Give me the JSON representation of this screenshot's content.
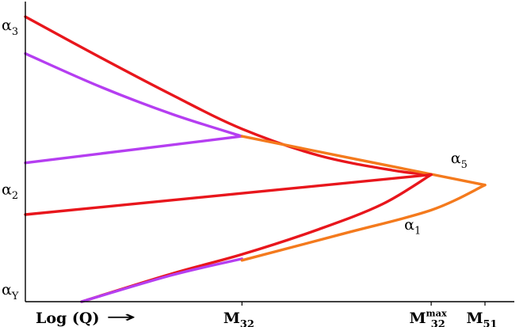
{
  "chart_data": {
    "type": "line",
    "title": "",
    "xlabel": "Log (Q)",
    "x_arrow": "→",
    "xlim": [
      0,
      10
    ],
    "ylim": [
      0,
      10
    ],
    "x_ticks": [
      {
        "key": "m32",
        "main": "M",
        "sub": "32",
        "sup": "",
        "x": 4.43
      },
      {
        "key": "m32max",
        "main": "M",
        "sub": "32",
        "sup": "max",
        "x": 8.3
      },
      {
        "key": "m51",
        "main": "M",
        "sub": "51",
        "sup": "",
        "x": 9.4
      }
    ],
    "y_labels": [
      {
        "key": "a3",
        "main": "α",
        "sub": "3",
        "y": 9.35
      },
      {
        "key": "a2",
        "main": "α",
        "sub": "2",
        "y": 3.8
      },
      {
        "key": "aY",
        "main": "α",
        "sub": "Y",
        "y": 0.4
      }
    ],
    "curve_labels": [
      {
        "key": "a5",
        "main": "α",
        "sub": "5",
        "x": 8.7,
        "y": 4.85
      },
      {
        "key": "a1",
        "main": "α",
        "sub": "1",
        "x": 7.75,
        "y": 2.6
      }
    ],
    "colors": {
      "red": "#e8161c",
      "purple": "#b53ef1",
      "orange": "#f47a1d",
      "axis": "#000000"
    },
    "series": [
      {
        "key": "red-alpha3",
        "color": "red",
        "x": [
          0,
          1.5,
          3.0,
          4.43,
          6.0,
          7.5,
          8.3
        ],
        "y": [
          9.65,
          8.3,
          7.0,
          5.85,
          4.95,
          4.45,
          4.3
        ]
      },
      {
        "key": "purple-upper",
        "color": "purple",
        "x": [
          0,
          1.5,
          3.0,
          4.43
        ],
        "y": [
          8.4,
          7.3,
          6.35,
          5.6
        ]
      },
      {
        "key": "purple-lower",
        "color": "purple",
        "x": [
          0,
          4.43
        ],
        "y": [
          4.7,
          5.6
        ]
      },
      {
        "key": "orange-alpha5",
        "color": "orange",
        "x": [
          4.43,
          9.4
        ],
        "y": [
          5.6,
          3.95
        ]
      },
      {
        "key": "red-alpha2",
        "color": "red",
        "x": [
          0,
          8.3
        ],
        "y": [
          2.95,
          4.3
        ]
      },
      {
        "key": "red-alphaY",
        "color": "red",
        "x": [
          1.15,
          3.0,
          4.43,
          6.0,
          7.3,
          8.3
        ],
        "y": [
          0,
          0.95,
          1.6,
          2.45,
          3.3,
          4.3
        ]
      },
      {
        "key": "purple-alphaY",
        "color": "purple",
        "x": [
          1.15,
          3.0,
          4.43
        ],
        "y": [
          0,
          0.9,
          1.45
        ]
      },
      {
        "key": "orange-alpha1",
        "color": "orange",
        "x": [
          4.43,
          6.5,
          8.3,
          9.4
        ],
        "y": [
          1.4,
          2.3,
          3.1,
          3.95
        ]
      }
    ]
  }
}
